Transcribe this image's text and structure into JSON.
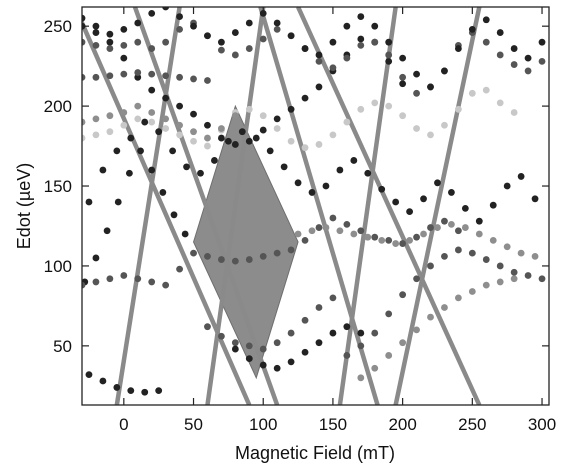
{
  "chart_data": {
    "type": "scatter",
    "xlabel": "Magnetic Field (mT)",
    "ylabel": "Edot (µeV)",
    "xlim": [
      -30,
      305
    ],
    "ylim": [
      13,
      262
    ],
    "x_ticks": [
      "0",
      "50",
      "100",
      "150",
      "200",
      "250",
      "300"
    ],
    "y_ticks": [
      "50",
      "100",
      "150",
      "200",
      "250"
    ],
    "grid": false,
    "legend": "none",
    "colors": {
      "line": "#8a8a8a",
      "diamond": "#8c8c8c",
      "dark": "#222222",
      "mid": "#555555",
      "light": "#8e8e8e",
      "pale": "#c8c8c8"
    },
    "lines": [
      [
        [
          -35,
          262
        ],
        [
          90,
          13
        ]
      ],
      [
        [
          8,
          262
        ],
        [
          110,
          13
        ]
      ],
      [
        [
          -5,
          13
        ],
        [
          40,
          262
        ]
      ],
      [
        [
          60,
          13
        ],
        [
          100,
          262
        ]
      ],
      [
        [
          98,
          262
        ],
        [
          182,
          13
        ]
      ],
      [
        [
          125,
          262
        ],
        [
          255,
          13
        ]
      ],
      [
        [
          155,
          13
        ],
        [
          195,
          262
        ]
      ],
      [
        [
          195,
          13
        ],
        [
          255,
          262
        ]
      ]
    ],
    "diamond": [
      [
        50,
        115
      ],
      [
        80,
        200
      ],
      [
        125,
        115
      ],
      [
        95,
        30
      ]
    ],
    "series": [
      {
        "shade": "dark",
        "x": [
          -30,
          -20,
          -10,
          0,
          10,
          20,
          30,
          40,
          50,
          60,
          70,
          80,
          90,
          100,
          110,
          120,
          130,
          140,
          150,
          160,
          170,
          180,
          190,
          200
        ],
        "y": [
          250,
          246,
          240,
          230,
          218,
          210,
          205,
          200,
          195,
          188,
          180,
          176,
          178,
          185,
          192,
          198,
          205,
          212,
          222,
          232,
          242,
          240,
          228,
          214
        ]
      },
      {
        "shade": "mid",
        "x": [
          -30,
          -20,
          -10,
          0,
          10,
          20,
          30,
          40,
          50,
          60,
          70,
          80,
          90,
          100,
          110,
          120,
          130,
          140,
          150,
          160,
          170,
          180,
          190,
          200,
          210,
          220,
          230,
          240,
          250,
          260,
          270,
          280,
          290,
          300
        ],
        "y": [
          240,
          238,
          236,
          238,
          240,
          236,
          240,
          248,
          252,
          244,
          235,
          232,
          236,
          242,
          248,
          244,
          236,
          228,
          224,
          230,
          238,
          240,
          232,
          218,
          208,
          212,
          222,
          238,
          246,
          240,
          232,
          226,
          222,
          228
        ]
      },
      {
        "shade": "mid",
        "x": [
          -30,
          -20,
          -10,
          0,
          10,
          20,
          30,
          40,
          50,
          60
        ],
        "y": [
          218,
          218,
          219,
          220,
          221,
          220,
          219,
          218,
          217,
          216
        ]
      },
      {
        "shade": "dark",
        "x": [
          -30,
          -20,
          -10,
          0,
          10,
          20,
          30,
          40,
          50,
          60,
          70,
          80,
          90,
          100,
          110,
          120,
          130,
          140,
          150,
          160,
          170,
          180,
          190,
          200,
          210,
          220,
          230,
          240,
          250,
          260,
          270,
          280,
          290,
          300
        ],
        "y": [
          255,
          250,
          245,
          248,
          252,
          258,
          262,
          256,
          250,
          244,
          240,
          246,
          252,
          258,
          252,
          244,
          236,
          232,
          240,
          250,
          256,
          250,
          240,
          230,
          220,
          212,
          222,
          236,
          248,
          254,
          246,
          236,
          230,
          240
        ]
      },
      {
        "shade": "pale",
        "x": [
          -30,
          -20,
          -10,
          0,
          10,
          20,
          30,
          40,
          50,
          60,
          70,
          80,
          90,
          100,
          110,
          120,
          130,
          140,
          150,
          160,
          170,
          180,
          190,
          200,
          210,
          220,
          230,
          240,
          250,
          260,
          270,
          280
        ],
        "y": [
          180,
          182,
          184,
          188,
          192,
          190,
          186,
          182,
          178,
          175,
          185,
          196,
          198,
          194,
          186,
          178,
          174,
          176,
          182,
          190,
          198,
          202,
          200,
          194,
          186,
          182,
          188,
          198,
          208,
          210,
          202,
          196
        ]
      },
      {
        "shade": "light",
        "x": [
          -30,
          -20,
          -10,
          0,
          10,
          20,
          30,
          40,
          50,
          60,
          70,
          80
        ],
        "y": [
          190,
          192,
          194,
          196,
          200,
          196,
          192,
          188,
          184,
          180,
          186,
          194
        ]
      },
      {
        "shade": "dark",
        "x": [
          -25,
          -15,
          -5,
          5,
          15,
          25,
          35,
          45,
          55,
          65,
          75,
          85,
          95,
          105,
          115,
          125,
          135,
          145,
          155,
          165,
          175,
          185,
          195,
          205,
          215,
          225,
          235,
          245,
          255,
          265,
          275,
          285,
          295
        ],
        "y": [
          140,
          160,
          172,
          180,
          190,
          184,
          172,
          162,
          158,
          166,
          178,
          184,
          180,
          172,
          162,
          152,
          146,
          150,
          160,
          166,
          158,
          148,
          140,
          134,
          142,
          152,
          146,
          136,
          128,
          138,
          150,
          156,
          142
        ]
      },
      {
        "shade": "dark",
        "x": [
          -28,
          -20,
          -12,
          -4,
          4,
          12,
          20,
          28,
          36,
          44
        ],
        "y": [
          90,
          105,
          122,
          140,
          158,
          172,
          160,
          146,
          132,
          120
        ]
      },
      {
        "shade": "mid",
        "x": [
          -30,
          -20,
          -10,
          0,
          10,
          20,
          30,
          40,
          50,
          60,
          70,
          80,
          90,
          100,
          110,
          120,
          130,
          140,
          150,
          160,
          170,
          180,
          190,
          200,
          210,
          220,
          230,
          240
        ],
        "y": [
          88,
          90,
          92,
          94,
          92,
          90,
          88,
          98,
          108,
          106,
          104,
          103,
          104,
          106,
          108,
          110,
          116,
          124,
          130,
          126,
          122,
          118,
          116,
          114,
          118,
          124,
          128,
          122
        ]
      },
      {
        "shade": "light",
        "x": [
          125,
          135,
          145,
          155,
          165,
          175,
          185,
          195,
          205,
          215,
          225,
          235,
          245,
          255,
          265,
          275,
          285,
          295
        ],
        "y": [
          120,
          122,
          124,
          122,
          120,
          118,
          116,
          114,
          116,
          120,
          124,
          126,
          124,
          120,
          116,
          112,
          108,
          106
        ]
      },
      {
        "shade": "dark",
        "x": [
          -25,
          -15,
          -5,
          5,
          15,
          25
        ],
        "y": [
          32,
          28,
          24,
          22,
          21,
          22
        ]
      },
      {
        "shade": "mid",
        "x": [
          60,
          70,
          80,
          90,
          100,
          110,
          120,
          130,
          140,
          150
        ],
        "y": [
          62,
          56,
          52,
          50,
          48,
          52,
          58,
          66,
          74,
          80
        ]
      },
      {
        "shade": "dark",
        "x": [
          80,
          90,
          100,
          110,
          120,
          130,
          140,
          150,
          160,
          170
        ],
        "y": [
          48,
          42,
          38,
          36,
          40,
          46,
          52,
          58,
          62,
          58
        ]
      },
      {
        "shade": "mid",
        "x": [
          160,
          170,
          180,
          190,
          200,
          210,
          220,
          230,
          240,
          250,
          260,
          270,
          280,
          290,
          300
        ],
        "y": [
          44,
          50,
          58,
          70,
          82,
          92,
          100,
          106,
          110,
          108,
          104,
          100,
          96,
          94,
          92
        ]
      },
      {
        "shade": "light",
        "x": [
          170,
          180,
          190,
          200,
          210,
          220,
          230,
          240,
          250,
          260,
          270,
          280
        ],
        "y": [
          30,
          36,
          44,
          52,
          60,
          68,
          74,
          80,
          84,
          88,
          90,
          92
        ]
      }
    ]
  }
}
